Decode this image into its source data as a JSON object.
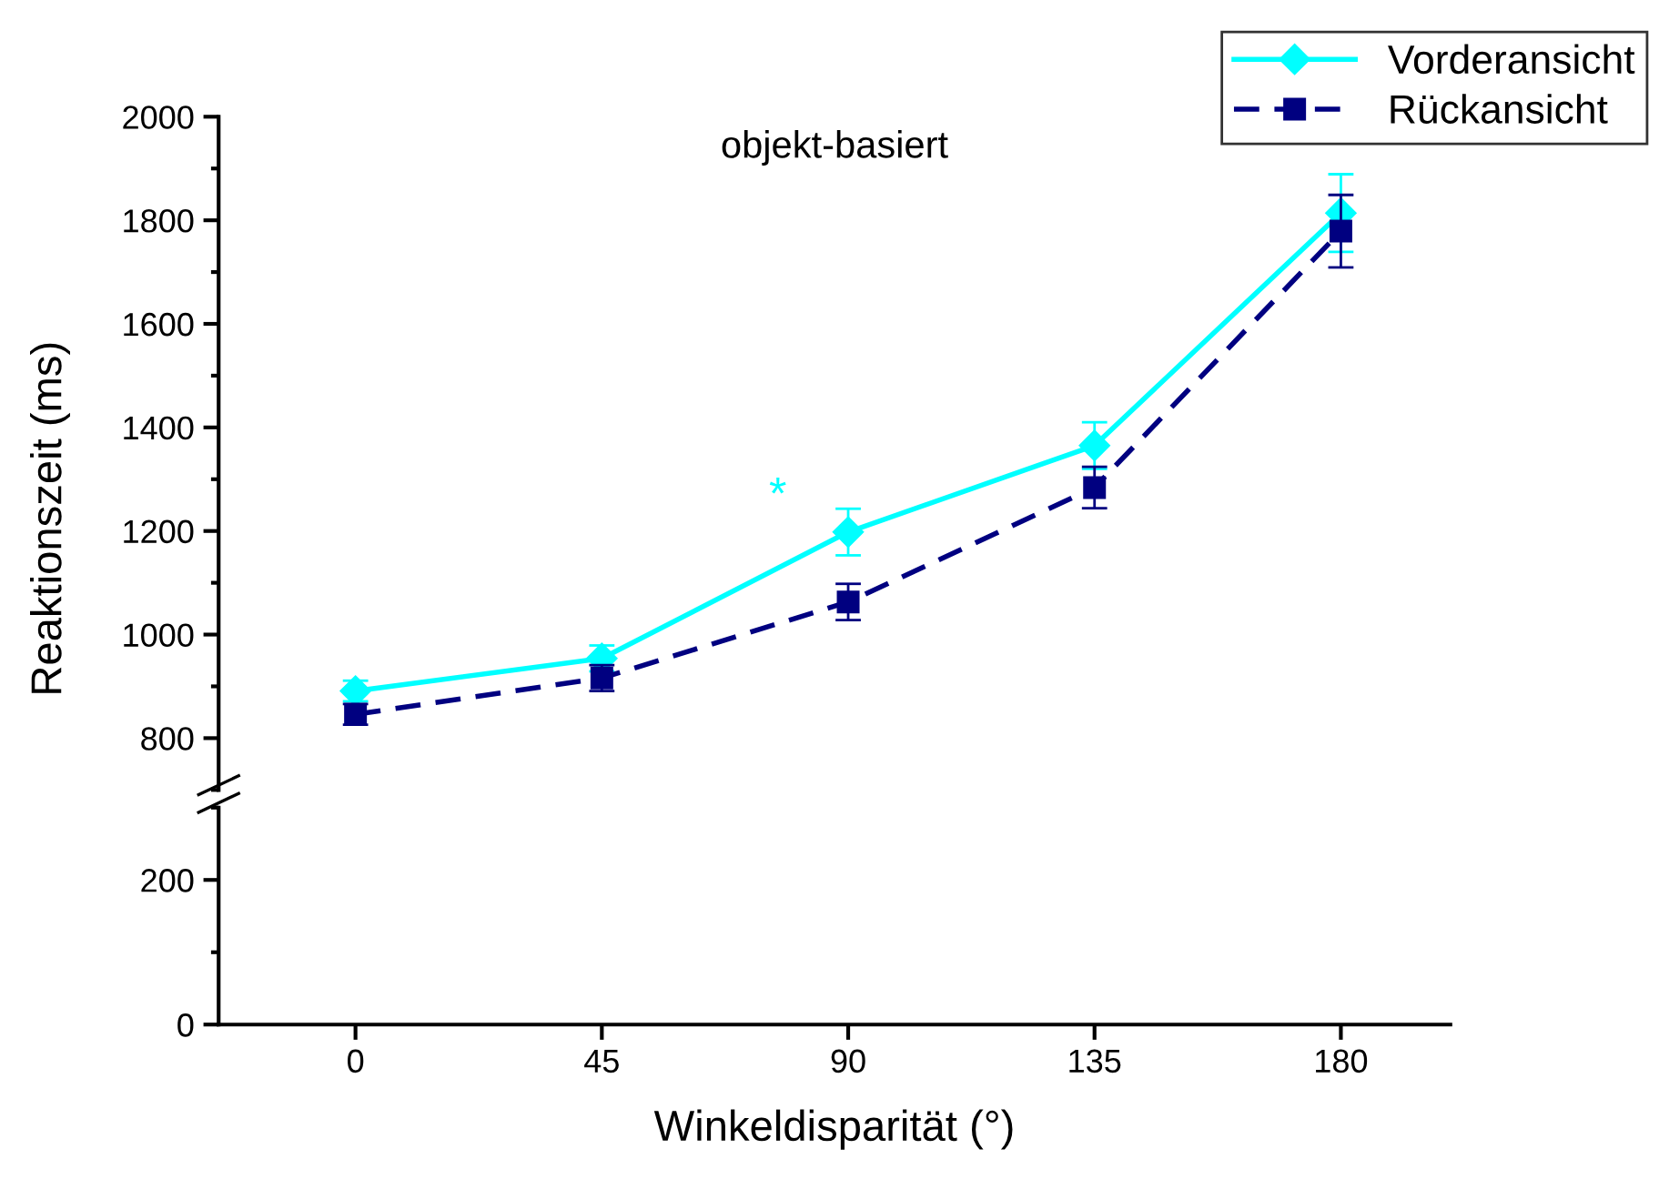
{
  "chart_data": [
    {
      "type": "line",
      "title": "objekt-basiert",
      "ylabel": "Reaktionszeit (ms)",
      "x": [
        0,
        45,
        90,
        135,
        180
      ],
      "series": [
        {
          "name": "Vorderansicht",
          "color": "#00ffff",
          "values": [
            891,
            954,
            1198,
            1365,
            1814
          ],
          "errors": [
            20,
            25,
            45,
            45,
            75
          ],
          "marker": "diamond",
          "line_style": "solid"
        },
        {
          "name": "Rückansicht",
          "color": "#000080",
          "values": [
            846,
            916,
            1063,
            1284,
            1779
          ],
          "errors": [
            20,
            25,
            35,
            40,
            70
          ],
          "marker": "square",
          "line_style": "dashed"
        }
      ],
      "annotations": [
        "*"
      ],
      "ylim": [
        700,
        2000
      ],
      "yticks": [
        800,
        1000,
        1200,
        1400,
        1600,
        1800,
        2000
      ],
      "tick_labels": "y",
      "legend": "top right",
      "grid": false
    },
    {
      "type": "line",
      "xlabel": "Winkeldisparität (°)",
      "xlim": [
        -25,
        200
      ],
      "xticks": [
        0,
        45,
        90,
        135,
        180
      ],
      "ylim": [
        0,
        300
      ],
      "yticks": [
        0,
        200
      ],
      "grid": false
    }
  ]
}
